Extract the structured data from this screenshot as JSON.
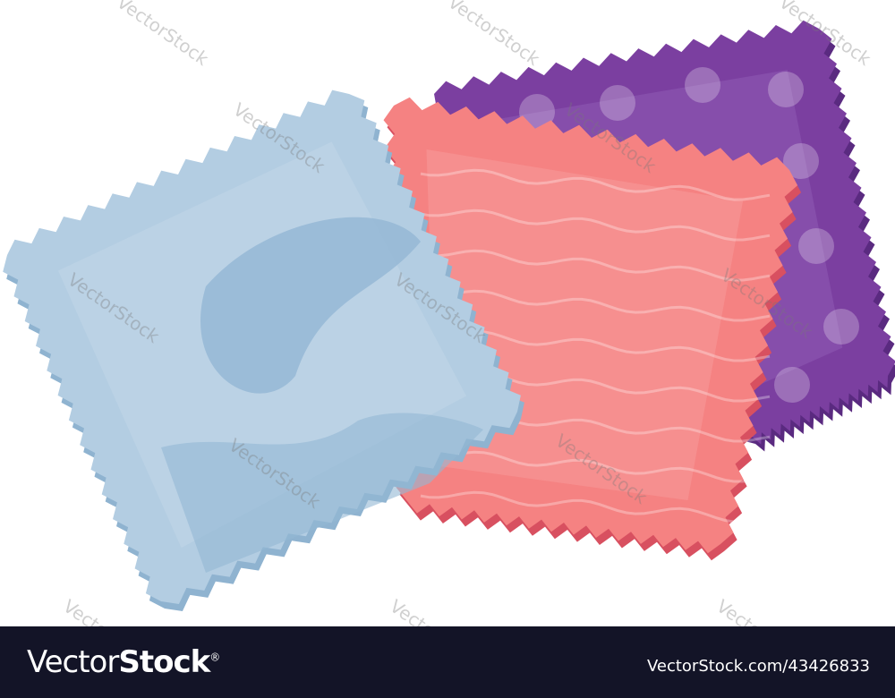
{
  "watermark": "VectorStock",
  "footer": {
    "logo_light": "Vector",
    "logo_bold": "Stock",
    "logo_mark": "®",
    "reference": "VectorStock.com/43426833",
    "background": "#131427"
  },
  "swatches": [
    {
      "name": "purple",
      "fill": "#7b3fa0",
      "edge": "#5a2a80",
      "light": "#9a6ac0"
    },
    {
      "name": "pink",
      "fill": "#f58282",
      "edge": "#d85060",
      "light": "#f9a8a8"
    },
    {
      "name": "blue",
      "fill": "#b3cde2",
      "edge": "#8fb3d0",
      "light": "#cbdcea"
    }
  ]
}
